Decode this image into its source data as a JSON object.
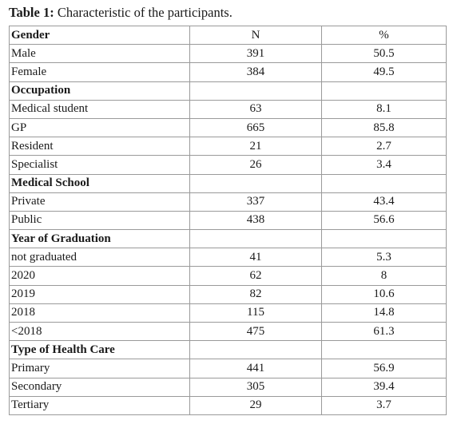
{
  "caption": {
    "label": "Table 1:",
    "text": " Characteristic of the participants."
  },
  "header": {
    "category": "Gender",
    "n": "N",
    "pct": "%"
  },
  "rows": [
    {
      "type": "data",
      "name": "Male",
      "n": "391",
      "pct": "50.5"
    },
    {
      "type": "data",
      "name": "Female",
      "n": "384",
      "pct": "49.5"
    },
    {
      "type": "section",
      "name": "Occupation"
    },
    {
      "type": "data",
      "name": "Medical student",
      "n": "63",
      "pct": "8.1"
    },
    {
      "type": "data",
      "name": "GP",
      "n": "665",
      "pct": "85.8"
    },
    {
      "type": "data",
      "name": "Resident",
      "n": "21",
      "pct": "2.7"
    },
    {
      "type": "data",
      "name": "Specialist",
      "n": "26",
      "pct": "3.4"
    },
    {
      "type": "section",
      "name": "Medical School"
    },
    {
      "type": "data",
      "name": "Private",
      "n": "337",
      "pct": "43.4"
    },
    {
      "type": "data",
      "name": "Public",
      "n": "438",
      "pct": "56.6"
    },
    {
      "type": "section",
      "name": "Year of Graduation"
    },
    {
      "type": "data",
      "name": "not graduated",
      "n": "41",
      "pct": "5.3"
    },
    {
      "type": "data",
      "name": "2020",
      "n": "62",
      "pct": "8"
    },
    {
      "type": "data",
      "name": "2019",
      "n": "82",
      "pct": "10.6"
    },
    {
      "type": "data",
      "name": "2018",
      "n": "115",
      "pct": "14.8"
    },
    {
      "type": "data",
      "name": "<2018",
      "n": "475",
      "pct": "61.3"
    },
    {
      "type": "section",
      "name": "Type of Health Care"
    },
    {
      "type": "data",
      "name": "Primary",
      "n": "441",
      "pct": "56.9"
    },
    {
      "type": "data",
      "name": "Secondary",
      "n": "305",
      "pct": "39.4"
    },
    {
      "type": "data",
      "name": "Tertiary",
      "n": "29",
      "pct": "3.7"
    }
  ]
}
